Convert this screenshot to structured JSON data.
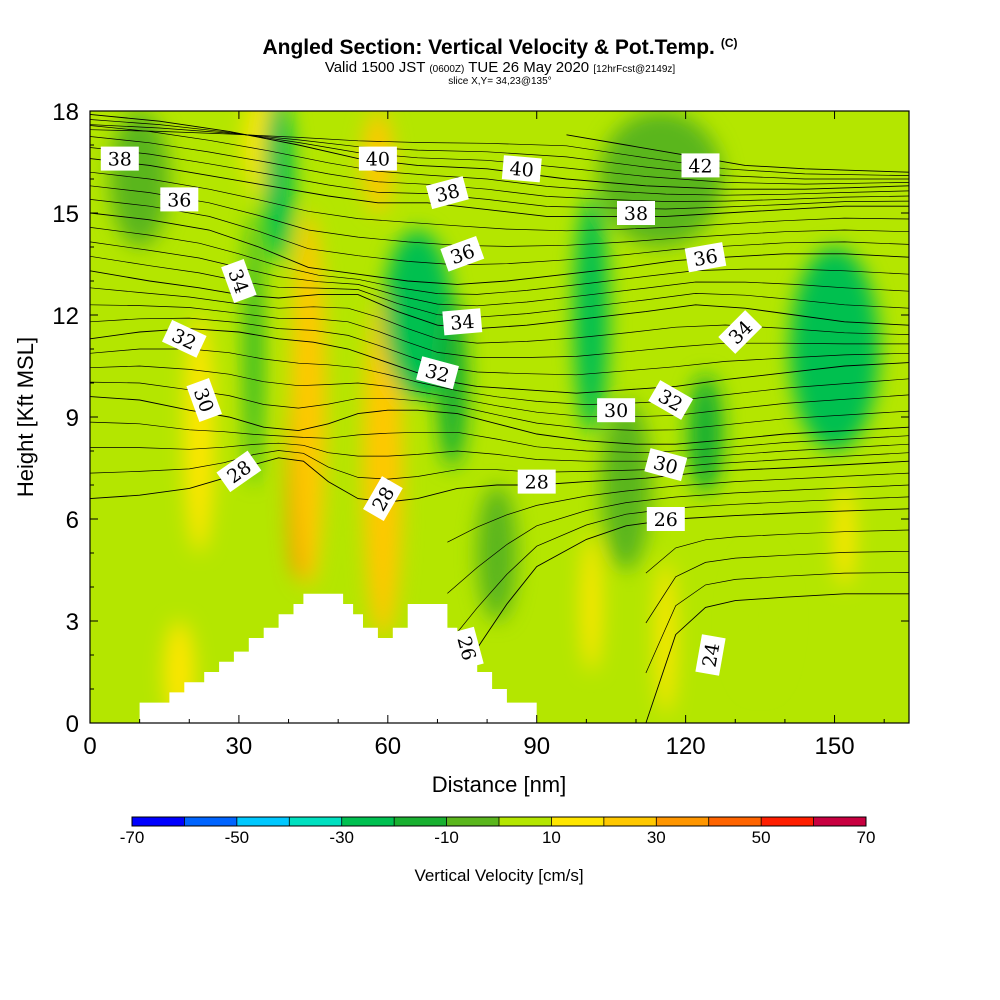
{
  "header": {
    "title": "Angled Section: Vertical Velocity & Pot.Temp.",
    "title_mark": "(C)",
    "subtitle_pre": "Valid 1500 JST",
    "subtitle_small1": "(0600Z)",
    "subtitle_mid": "TUE 26 May 2020",
    "subtitle_small2": "[12hrFcst@2149z]",
    "slice": "slice X,Y= 34,23@135°"
  },
  "chart_data": {
    "type": "heatmap",
    "title": "Angled Section: Vertical Velocity & Pot.Temp.",
    "xlabel": "Distance [nm]",
    "ylabel": "Height [Kft MSL]",
    "xlim": [
      0,
      165
    ],
    "ylim": [
      0,
      18
    ],
    "x_ticks": [
      0,
      30,
      60,
      90,
      120,
      150
    ],
    "y_ticks": [
      0,
      3,
      6,
      9,
      12,
      15,
      18
    ],
    "grid": false,
    "colorbar": {
      "title": "Vertical Velocity [cm/s]",
      "placement": "bottom",
      "ticks": [
        -70,
        -50,
        -30,
        -10,
        10,
        30,
        50,
        70
      ],
      "bins": [
        -70,
        -60,
        -50,
        -40,
        -30,
        -20,
        -10,
        0,
        10,
        20,
        30,
        40,
        50,
        60,
        70
      ],
      "colors": [
        "#0000ff",
        "#0064ff",
        "#00c8ff",
        "#00e0c0",
        "#00c050",
        "#18b030",
        "#5ab61c",
        "#b4e600",
        "#ffe600",
        "#ffc800",
        "#ff9600",
        "#ff6400",
        "#ff1e00",
        "#c80040",
        "#780096"
      ]
    },
    "terrain": {
      "x": [
        0,
        10,
        10,
        16,
        16,
        19,
        19,
        23,
        23,
        26,
        26,
        29,
        29,
        32,
        32,
        35,
        35,
        38,
        38,
        41,
        41,
        43,
        43,
        46,
        46,
        49,
        49,
        51,
        51,
        53,
        53,
        55,
        55,
        58,
        58,
        61,
        61,
        64,
        64,
        66,
        66,
        72,
        72,
        74,
        74,
        76,
        76,
        78,
        78,
        81,
        81,
        84,
        84,
        90,
        90,
        165
      ],
      "y": [
        0,
        0,
        0.6,
        0.6,
        0.9,
        0.9,
        1.2,
        1.2,
        1.5,
        1.5,
        1.8,
        1.8,
        2.1,
        2.1,
        2.5,
        2.5,
        2.8,
        2.8,
        3.2,
        3.2,
        3.5,
        3.5,
        3.8,
        3.8,
        3.8,
        3.8,
        3.8,
        3.8,
        3.5,
        3.5,
        3.2,
        3.2,
        2.8,
        2.8,
        2.5,
        2.5,
        2.8,
        2.8,
        3.5,
        3.5,
        3.5,
        3.5,
        2.8,
        2.8,
        2.3,
        2.3,
        1.9,
        1.9,
        1.5,
        1.5,
        1.0,
        1.0,
        0.6,
        0.6,
        0,
        0
      ]
    },
    "velocity_features": [
      {
        "x": 42,
        "y": 7.5,
        "w": 4,
        "h": 6.5,
        "value": 45
      },
      {
        "x": 44,
        "y": 9.5,
        "w": 7,
        "h": 11,
        "value": 25
      },
      {
        "x": 59,
        "y": 6.0,
        "w": 4,
        "h": 5.5,
        "value": 35
      },
      {
        "x": 59,
        "y": 7.5,
        "w": 8,
        "h": 10,
        "value": 22
      },
      {
        "x": 58,
        "y": 16.5,
        "w": 6,
        "h": 3,
        "value": 28
      },
      {
        "x": 35,
        "y": 17.0,
        "w": 8,
        "h": 3,
        "value": 15
      },
      {
        "x": 22,
        "y": 8.5,
        "w": 6,
        "h": 7,
        "value": 15
      },
      {
        "x": 18,
        "y": 1.5,
        "w": 6,
        "h": 3,
        "value": 15
      },
      {
        "x": 38,
        "y": 16.0,
        "w": 6,
        "h": 5,
        "value": -25
      },
      {
        "x": 33,
        "y": 11.0,
        "w": 3,
        "h": 8,
        "value": -15
      },
      {
        "x": 66,
        "y": 12.0,
        "w": 14,
        "h": 5,
        "value": -22
      },
      {
        "x": 73,
        "y": 10.0,
        "w": 6,
        "h": 5,
        "value": -15
      },
      {
        "x": 101,
        "y": 12.0,
        "w": 7,
        "h": 7,
        "value": -22
      },
      {
        "x": 124,
        "y": 8.5,
        "w": 7,
        "h": 3.5,
        "value": -18
      },
      {
        "x": 150,
        "y": 11.0,
        "w": 18,
        "h": 6,
        "value": -22
      },
      {
        "x": 10,
        "y": 16.0,
        "w": 12,
        "h": 4,
        "value": -8
      },
      {
        "x": 115,
        "y": 16.0,
        "w": 25,
        "h": 4,
        "value": -8
      },
      {
        "x": 82,
        "y": 5.0,
        "w": 8,
        "h": 4,
        "value": -5
      },
      {
        "x": 108,
        "y": 7.0,
        "w": 10,
        "h": 5,
        "value": -5
      },
      {
        "x": 101,
        "y": 3.5,
        "w": 4,
        "h": 4,
        "value": 15
      },
      {
        "x": 116,
        "y": 2.5,
        "w": 4,
        "h": 4.5,
        "value": 15
      },
      {
        "x": 135,
        "y": 3.0,
        "w": 10,
        "h": 4,
        "value": 3
      },
      {
        "x": 152,
        "y": 5.5,
        "w": 4,
        "h": 3,
        "value": 15
      }
    ],
    "theta_contours": [
      {
        "level": 24,
        "x": [
          112,
          118,
          124,
          130,
          140,
          152,
          165
        ],
        "y": [
          0,
          2.6,
          3.4,
          3.6,
          3.7,
          3.8,
          3.8
        ],
        "label_at": [
          125,
          2.0
        ],
        "label_rot": -80
      },
      {
        "level": 26,
        "x": [
          72,
          78,
          84,
          90,
          100,
          108,
          118,
          130,
          145,
          165
        ],
        "y": [
          0.8,
          2.2,
          3.5,
          4.6,
          5.4,
          5.8,
          6.0,
          6.1,
          6.2,
          6.3
        ],
        "label_at": [
          116,
          6.0
        ],
        "label_rot": 0
      },
      {
        "level": 28,
        "x": [
          0,
          10,
          20,
          27,
          33,
          38,
          43,
          48,
          54,
          60,
          66,
          74,
          82,
          90,
          100,
          112,
          125,
          140,
          165
        ],
        "y": [
          6.6,
          6.7,
          6.9,
          7.2,
          7.6,
          7.8,
          7.7,
          7.1,
          6.6,
          6.5,
          6.6,
          6.9,
          7.0,
          7.0,
          7.1,
          7.2,
          7.4,
          7.5,
          7.7
        ],
        "label_at": [
          90,
          7.1
        ],
        "label_rot": 0
      },
      {
        "level": 30,
        "x": [
          0,
          10,
          20,
          28,
          35,
          42,
          48,
          54,
          60,
          66,
          74,
          82,
          90,
          100,
          110,
          118,
          126,
          140,
          165
        ],
        "y": [
          9.6,
          9.5,
          9.2,
          9.0,
          8.7,
          8.6,
          8.8,
          9.1,
          9.2,
          9.2,
          9.1,
          8.8,
          8.5,
          8.3,
          8.2,
          8.2,
          8.3,
          8.5,
          8.7
        ],
        "label_at": [
          106,
          9.2
        ],
        "label_rot": 0
      },
      {
        "level": 32,
        "x": [
          0,
          10,
          20,
          30,
          38,
          45,
          52,
          58,
          64,
          70,
          78,
          88,
          98,
          108,
          118,
          128,
          140,
          152,
          165
        ],
        "y": [
          11.3,
          11.5,
          11.6,
          11.5,
          11.3,
          11.2,
          11.0,
          10.7,
          10.4,
          10.1,
          9.9,
          9.8,
          9.7,
          9.8,
          9.9,
          10.1,
          10.3,
          10.5,
          10.6
        ],
        "label_at": [
          19,
          11.3
        ],
        "label_rot": 25
      },
      {
        "level": 34,
        "x": [
          0,
          12,
          22,
          30,
          38,
          46,
          54,
          62,
          70,
          78,
          88,
          100,
          112,
          122,
          132,
          142,
          152,
          165
        ],
        "y": [
          13.3,
          13.0,
          12.8,
          12.6,
          12.5,
          12.6,
          12.6,
          12.1,
          11.7,
          11.6,
          11.7,
          11.9,
          12.1,
          12.3,
          12.2,
          12.0,
          11.8,
          11.7
        ],
        "label_at": [
          75,
          11.8
        ],
        "label_rot": -5
      },
      {
        "level": 36,
        "x": [
          0,
          12,
          24,
          34,
          44,
          54,
          64,
          74,
          84,
          96,
          108,
          118,
          128,
          140,
          152,
          165
        ],
        "y": [
          15.0,
          14.8,
          14.5,
          14.0,
          13.4,
          13.2,
          13.0,
          12.9,
          13.0,
          13.2,
          13.4,
          13.6,
          13.7,
          13.8,
          13.8,
          13.7
        ],
        "label_at": [
          18,
          15.4
        ],
        "label_rot": 0
      },
      {
        "level": 38,
        "x": [
          0,
          12,
          24,
          36,
          48,
          58,
          68,
          80,
          92,
          104,
          116,
          128,
          140,
          152,
          165
        ],
        "y": [
          16.6,
          16.4,
          16.1,
          15.8,
          15.5,
          15.3,
          15.3,
          15.1,
          14.9,
          14.9,
          14.9,
          15.0,
          15.1,
          15.2,
          15.2
        ],
        "label_at": [
          6,
          16.6
        ],
        "label_rot": 0
      },
      {
        "level": 40,
        "x": [
          0,
          14,
          28,
          42,
          54,
          66,
          80,
          96,
          112,
          128,
          144,
          165
        ],
        "y": [
          17.9,
          17.7,
          17.4,
          17.0,
          16.6,
          16.4,
          16.3,
          16.0,
          15.8,
          15.7,
          15.7,
          15.8
        ],
        "label_at": [
          58,
          16.6
        ],
        "label_rot": 0
      },
      {
        "level": 42,
        "x": [
          96,
          108,
          120,
          132,
          144,
          165
        ],
        "y": [
          17.3,
          17.0,
          16.7,
          16.4,
          16.3,
          16.2
        ],
        "label_at": [
          123,
          16.4
        ],
        "label_rot": 0
      }
    ],
    "extra_labels": [
      {
        "level": 28,
        "at": [
          30,
          7.4
        ],
        "rot": -35
      },
      {
        "level": 28,
        "at": [
          59,
          6.6
        ],
        "rot": -60
      },
      {
        "level": 26,
        "at": [
          76,
          2.2
        ],
        "rot": 75
      },
      {
        "level": 30,
        "at": [
          23,
          9.5
        ],
        "rot": 70
      },
      {
        "level": 30,
        "at": [
          116,
          7.6
        ],
        "rot": 15
      },
      {
        "level": 32,
        "at": [
          70,
          10.3
        ],
        "rot": 15
      },
      {
        "level": 32,
        "at": [
          117,
          9.5
        ],
        "rot": 30
      },
      {
        "level": 34,
        "at": [
          30,
          13.0
        ],
        "rot": 70
      },
      {
        "level": 34,
        "at": [
          131,
          11.5
        ],
        "rot": -45
      },
      {
        "level": 36,
        "at": [
          75,
          13.8
        ],
        "rot": -20
      },
      {
        "level": 36,
        "at": [
          124,
          13.7
        ],
        "rot": -10
      },
      {
        "level": 38,
        "at": [
          72,
          15.6
        ],
        "rot": -15
      },
      {
        "level": 38,
        "at": [
          110,
          15.0
        ],
        "rot": 0
      },
      {
        "level": 40,
        "at": [
          87,
          16.3
        ],
        "rot": 5
      }
    ]
  }
}
